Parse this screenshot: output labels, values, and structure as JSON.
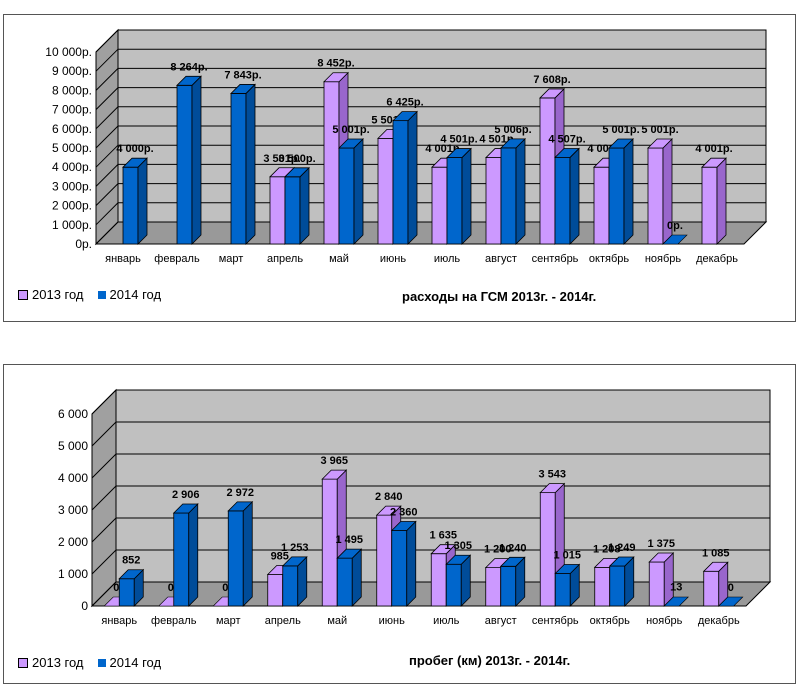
{
  "colors": {
    "s2013": "#cc99ff",
    "s2013_dark": "#9966cc",
    "s2014": "#0066cc",
    "s2014_dark": "#004c99",
    "wall": "#c0c0c0",
    "floor": "#999999"
  },
  "chart_data": [
    {
      "type": "bar",
      "title": "расходы на ГСМ 2013г. - 2014г.",
      "categories": [
        "январь",
        "февраль",
        "март",
        "апрель",
        "май",
        "июнь",
        "июль",
        "август",
        "сентябрь",
        "октябрь",
        "ноябрь",
        "декабрь"
      ],
      "ylim": [
        0,
        10000
      ],
      "yticks": [
        0,
        1000,
        2000,
        3000,
        4000,
        5000,
        6000,
        7000,
        8000,
        9000,
        10000
      ],
      "ytick_labels": [
        "0р.",
        "1 000р.",
        "2 000р.",
        "3 000р.",
        "4 000р.",
        "5 000р.",
        "6 000р.",
        "7 000р.",
        "8 000р.",
        "9 000р.",
        "10 000р."
      ],
      "legend": "bottom-left",
      "series": [
        {
          "name": "2013 год",
          "values": [
            null,
            null,
            null,
            3501,
            8452,
            5501,
            4001,
            4501,
            7608,
            4001,
            5001,
            4001
          ],
          "labels": [
            "",
            "",
            "",
            "3 501р.",
            "8 452р.",
            "5 501р.",
            "4 001р.",
            "4 501р.",
            "7 608р.",
            "4 001р.",
            "5 001р.",
            "4 001р."
          ]
        },
        {
          "name": "2014 год",
          "values": [
            4000,
            8264,
            7843,
            3500,
            5001,
            6425,
            4501,
            5006,
            4507,
            5001,
            0,
            null
          ],
          "labels": [
            "4 000р.",
            "8 264р.",
            "7 843р.",
            "3 500р.",
            "5 001р.",
            "6 425р.",
            "4 501р.",
            "5 006р.",
            "4 507р.",
            "5 001р.",
            "0р.",
            ""
          ]
        }
      ]
    },
    {
      "type": "bar",
      "title": "пробег (км) 2013г. - 2014г.",
      "categories": [
        "январь",
        "февраль",
        "март",
        "апрель",
        "май",
        "июнь",
        "июль",
        "август",
        "сентябрь",
        "октябрь",
        "ноябрь",
        "декабрь"
      ],
      "ylim": [
        0,
        6000
      ],
      "yticks": [
        0,
        1000,
        2000,
        3000,
        4000,
        5000,
        6000
      ],
      "ytick_labels": [
        "0",
        "1 000",
        "2 000",
        "3 000",
        "4 000",
        "5 000",
        "6 000"
      ],
      "legend": "bottom-left",
      "series": [
        {
          "name": "2013 год",
          "values": [
            0,
            0,
            0,
            985,
            3965,
            2840,
            1635,
            1200,
            3543,
            1208,
            1375,
            1085
          ],
          "labels": [
            "0",
            "0",
            "0",
            "985",
            "3 965",
            "2 840",
            "1 635",
            "1 200",
            "3 543",
            "1 208",
            "1 375",
            "1 085"
          ]
        },
        {
          "name": "2014 год",
          "values": [
            852,
            2906,
            2972,
            1253,
            1495,
            2360,
            1305,
            1240,
            1015,
            1249,
            13,
            0
          ],
          "labels": [
            "852",
            "2 906",
            "2 972",
            "1 253",
            "1 495",
            "2 360",
            "1 305",
            "1 240",
            "1 015",
            "1 249",
            "13",
            "0"
          ]
        }
      ]
    }
  ]
}
